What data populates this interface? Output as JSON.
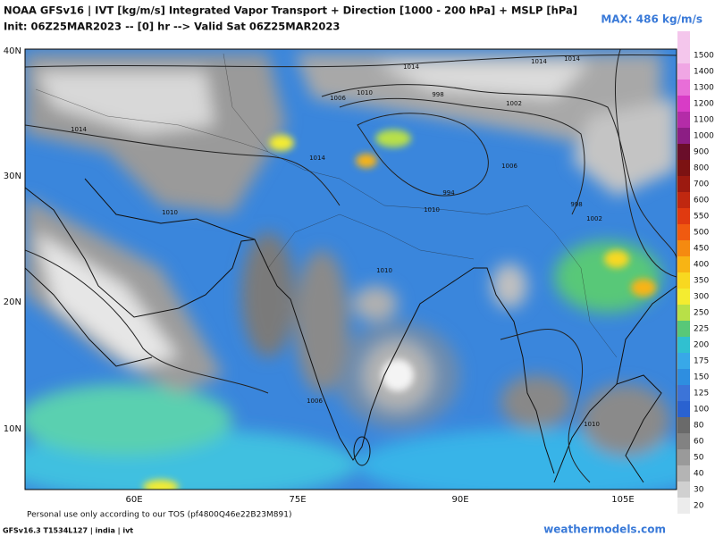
{
  "header": {
    "title": "NOAA GFSv16 | IVT [kg/m/s] Integrated Vapor Transport + Direction [1000 - 200 hPa] + MSLP [hPa]",
    "init": "Init: 06Z25MAR2023 -- [0] hr --> Valid Sat 06Z25MAR2023",
    "max": "MAX: 486 kg/m/s"
  },
  "map": {
    "lat_labels": [
      "40N",
      "30N",
      "20N",
      "10N"
    ],
    "lon_labels": [
      "60E",
      "75E",
      "90E",
      "105E"
    ],
    "isobar_labels": [
      "1014",
      "1010",
      "1006",
      "1002",
      "998",
      "994",
      "1010",
      "1006",
      "998",
      "1002",
      "1014",
      "1014",
      "1014",
      "1014",
      "1010",
      "1010",
      "1006",
      "1010"
    ]
  },
  "colorbar": {
    "levels": [
      "1500",
      "1400",
      "1300",
      "1200",
      "1100",
      "1000",
      "900",
      "800",
      "700",
      "600",
      "550",
      "500",
      "450",
      "400",
      "350",
      "300",
      "250",
      "225",
      "200",
      "175",
      "150",
      "125",
      "100",
      "80",
      "60",
      "50",
      "40",
      "30",
      "20"
    ],
    "colors": [
      "#f4c6ec",
      "#f0a6e4",
      "#e86ed8",
      "#d83cc6",
      "#b42ca8",
      "#8c1e84",
      "#6a0e2a",
      "#7c1212",
      "#9c1a10",
      "#c02810",
      "#e03a10",
      "#f05a10",
      "#f58a10",
      "#f8b414",
      "#f8d820",
      "#f4ec30",
      "#b8e048",
      "#58c878",
      "#30c0d0",
      "#38a8e8",
      "#2e8ee0",
      "#3c74d8",
      "#2a62d0",
      "#6a6a6a",
      "#828282",
      "#9a9a9a",
      "#b4b4b4",
      "#d0d0d0",
      "#ececec"
    ]
  },
  "footer": {
    "tos": "Personal use only according to our TOS (pf4800Q46e22B23M891)",
    "model": "GFSv16.3 T1534L127 | india | ivt",
    "site": "weathermodels.com"
  }
}
